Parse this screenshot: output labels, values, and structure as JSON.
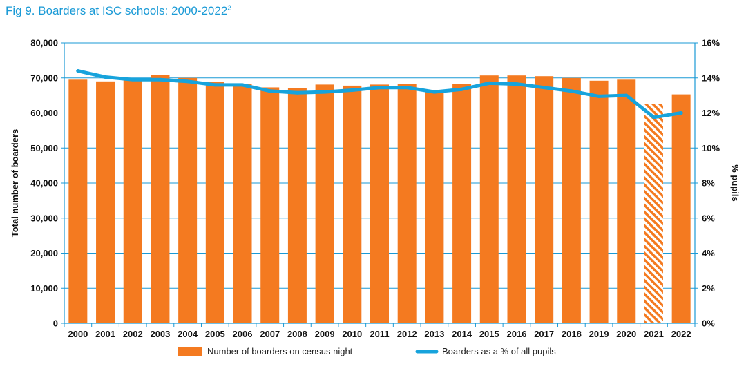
{
  "title": {
    "main": "Fig 9. Boarders at ISC schools: 2000-2022",
    "footnote_marker": "2"
  },
  "colors": {
    "title": "#1a9ad6",
    "bar": "#f47a20",
    "line": "#17a3dc",
    "grid": "#1a9ad6",
    "axis_text": "#111111"
  },
  "chart_data": {
    "type": "bar",
    "categories": [
      "2000",
      "2001",
      "2002",
      "2003",
      "2004",
      "2005",
      "2006",
      "2007",
      "2008",
      "2009",
      "2010",
      "2011",
      "2012",
      "2013",
      "2014",
      "2015",
      "2016",
      "2017",
      "2018",
      "2019",
      "2020",
      "2021",
      "2022"
    ],
    "series": [
      {
        "name": "Number of boarders on census night",
        "type": "bar",
        "axis": "left",
        "values": [
          69500,
          69000,
          69500,
          70800,
          70000,
          68800,
          68300,
          67300,
          67000,
          68100,
          67800,
          68100,
          68300,
          66300,
          68300,
          70700,
          70700,
          70500,
          70000,
          69200,
          69500,
          62500,
          65300
        ],
        "hatched_categories": [
          "2021"
        ]
      },
      {
        "name": "Boarders as a % of all pupils",
        "type": "line",
        "axis": "right",
        "values": [
          14.4,
          14.05,
          13.9,
          13.9,
          13.8,
          13.6,
          13.6,
          13.25,
          13.15,
          13.2,
          13.3,
          13.45,
          13.45,
          13.2,
          13.35,
          13.7,
          13.65,
          13.45,
          13.25,
          12.95,
          13.0,
          11.75,
          12.0
        ]
      }
    ],
    "y_left": {
      "label": "Total number of boarders",
      "range": [
        0,
        80000
      ],
      "ticks": [
        "0",
        "10,000",
        "20,000",
        "30,000",
        "40,000",
        "50,000",
        "60,000",
        "70,000",
        "80,000"
      ],
      "tick_values": [
        0,
        10000,
        20000,
        30000,
        40000,
        50000,
        60000,
        70000,
        80000
      ]
    },
    "y_right": {
      "label": "% pupils",
      "range": [
        0,
        16
      ],
      "ticks": [
        "0%",
        "2%",
        "4%",
        "6%",
        "8%",
        "10%",
        "12%",
        "14%",
        "16%"
      ],
      "tick_values": [
        0,
        2,
        4,
        6,
        8,
        10,
        12,
        14,
        16
      ]
    },
    "grid": true,
    "legend_position": "bottom"
  }
}
